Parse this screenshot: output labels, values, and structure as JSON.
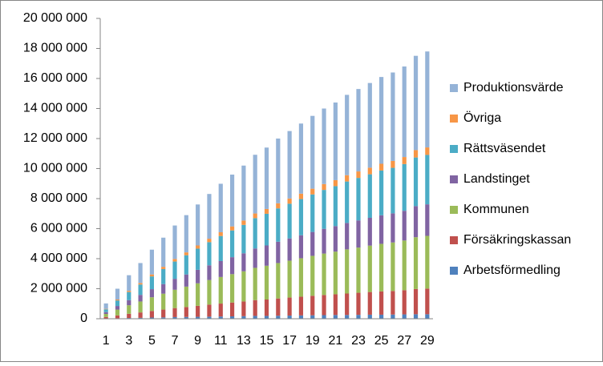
{
  "chart_data": {
    "type": "stacked_bar",
    "categories": [
      "1",
      null,
      "3",
      null,
      "5",
      null,
      "7",
      null,
      "9",
      null,
      "11",
      null,
      "13",
      null,
      "15",
      null,
      "17",
      null,
      "19",
      null,
      "21",
      null,
      "23",
      null,
      "25",
      null,
      "27",
      null,
      "29"
    ],
    "series": [
      {
        "name": "Arbetsförmedling",
        "color": "#4f81bd",
        "values": [
          20000,
          30000,
          50000,
          60000,
          80000,
          90000,
          110000,
          120000,
          130000,
          140000,
          150000,
          160000,
          170000,
          190000,
          190000,
          200000,
          210000,
          220000,
          230000,
          240000,
          250000,
          250000,
          260000,
          270000,
          270000,
          280000,
          290000,
          300000,
          300000
        ]
      },
      {
        "name": "Försäkringskassan",
        "color": "#c0504d",
        "values": [
          100000,
          190000,
          280000,
          360000,
          440000,
          520000,
          600000,
          660000,
          730000,
          800000,
          860000,
          920000,
          980000,
          1050000,
          1090000,
          1150000,
          1200000,
          1250000,
          1300000,
          1340000,
          1380000,
          1430000,
          1470000,
          1510000,
          1550000,
          1570000,
          1610000,
          1680000,
          1710000
        ]
      },
      {
        "name": "Kommunen",
        "color": "#9bbb59",
        "values": [
          200000,
          390000,
          570000,
          730000,
          910000,
          1060000,
          1220000,
          1360000,
          1500000,
          1640000,
          1770000,
          1890000,
          2010000,
          2150000,
          2250000,
          2360000,
          2460000,
          2560000,
          2660000,
          2760000,
          2840000,
          2940000,
          3010000,
          3090000,
          3170000,
          3230000,
          3310000,
          3450000,
          3510000
        ]
      },
      {
        "name": "Landstinget",
        "color": "#8064a2",
        "values": [
          120000,
          240000,
          340000,
          440000,
          540000,
          640000,
          730000,
          810000,
          900000,
          980000,
          1060000,
          1130000,
          1200000,
          1290000,
          1350000,
          1420000,
          1480000,
          1530000,
          1590000,
          1650000,
          1700000,
          1760000,
          1810000,
          1850000,
          1900000,
          1940000,
          1980000,
          2070000,
          2100000
        ]
      },
      {
        "name": "Rättsväsendet",
        "color": "#4bacc6",
        "values": [
          190000,
          370000,
          540000,
          690000,
          850000,
          1000000,
          1150000,
          1280000,
          1410000,
          1540000,
          1670000,
          1780000,
          1890000,
          2020000,
          2110000,
          2220000,
          2310000,
          2410000,
          2500000,
          2590000,
          2660000,
          2760000,
          2830000,
          2900000,
          2980000,
          3030000,
          3110000,
          3240000,
          3290000
        ]
      },
      {
        "name": "Övriga",
        "color": "#f79646",
        "values": [
          30000,
          60000,
          80000,
          100000,
          130000,
          150000,
          170000,
          190000,
          210000,
          230000,
          250000,
          270000,
          290000,
          310000,
          320000,
          340000,
          350000,
          360000,
          380000,
          390000,
          400000,
          420000,
          430000,
          440000,
          450000,
          460000,
          470000,
          490000,
          500000
        ]
      },
      {
        "name": "Produktionsvärde",
        "color": "#95b3d7",
        "values": [
          360000,
          720000,
          1040000,
          1330000,
          1650000,
          1940000,
          2230000,
          2480000,
          2730000,
          2980000,
          3230000,
          3450000,
          3660000,
          3910000,
          4090000,
          4310000,
          4490000,
          4670000,
          4850000,
          5030000,
          5170000,
          5350000,
          5490000,
          5640000,
          5780000,
          5890000,
          6030000,
          6280000,
          6390000
        ]
      }
    ],
    "ylim": [
      0,
      20000000
    ],
    "yticks": [
      {
        "value": 0,
        "label": "0"
      },
      {
        "value": 2000000,
        "label": "2 000 000"
      },
      {
        "value": 4000000,
        "label": "4 000 000"
      },
      {
        "value": 6000000,
        "label": "6 000 000"
      },
      {
        "value": 8000000,
        "label": "8 000 000"
      },
      {
        "value": 10000000,
        "label": "10 000 000"
      },
      {
        "value": 12000000,
        "label": "12 000 000"
      },
      {
        "value": 14000000,
        "label": "14 000 000"
      },
      {
        "value": 16000000,
        "label": "16 000 000"
      },
      {
        "value": 18000000,
        "label": "18 000 000"
      },
      {
        "value": 20000000,
        "label": "20 000 000"
      }
    ],
    "legend": "right"
  }
}
